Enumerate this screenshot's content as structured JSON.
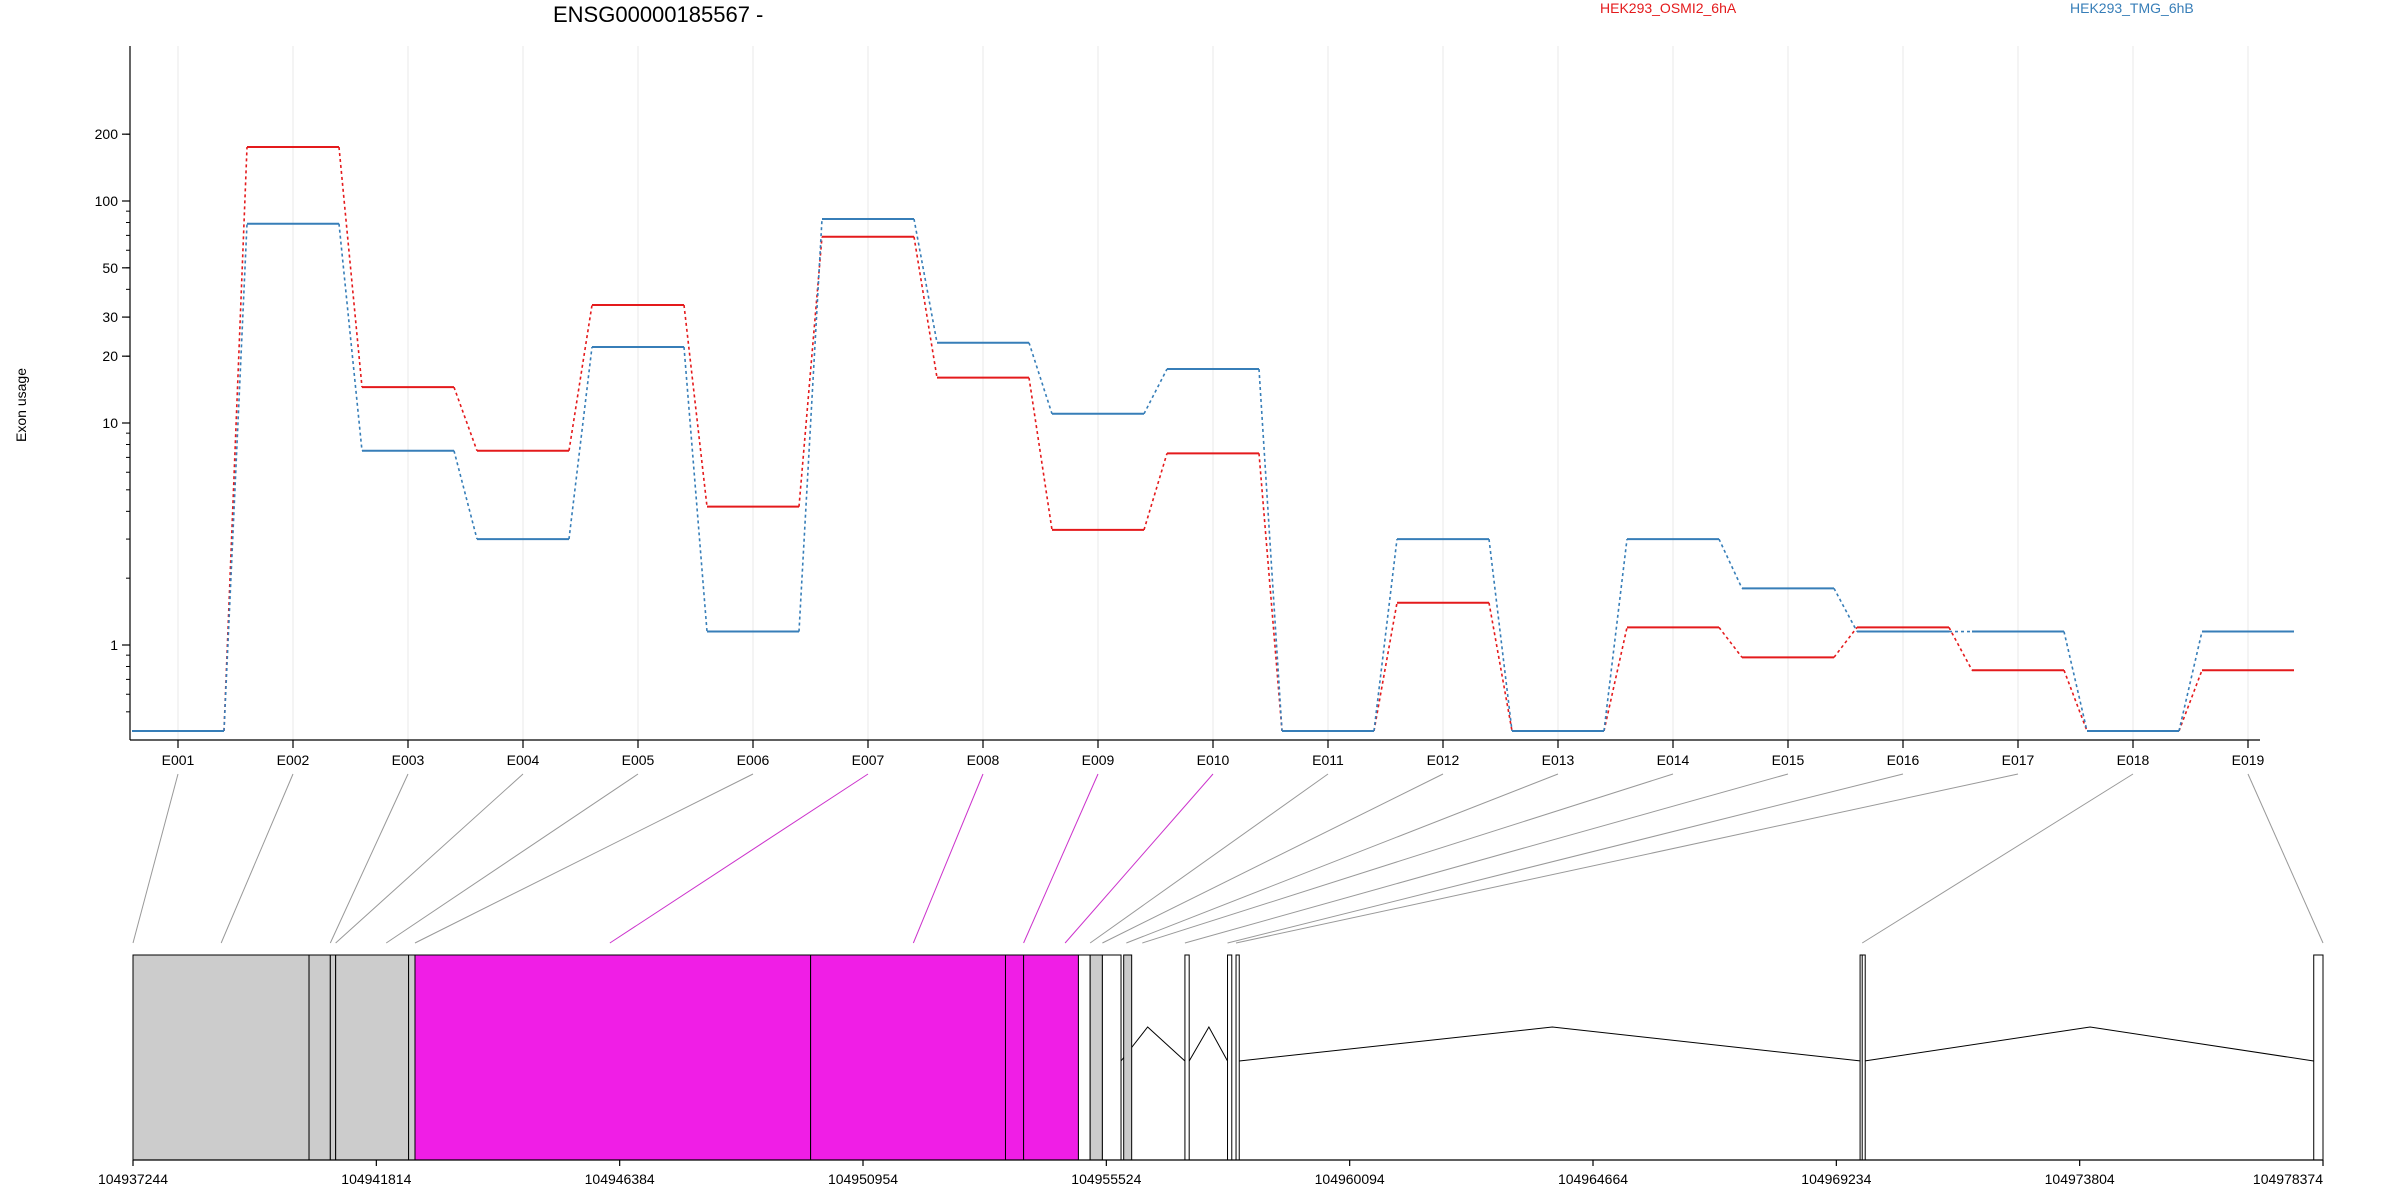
{
  "chart_data": {
    "type": "line",
    "title": "ENSG00000185567 -",
    "ylabel": "Exon usage",
    "xlabel": "",
    "y_scale": "log",
    "y_ticks": [
      1,
      10,
      20,
      30,
      50,
      100,
      200
    ],
    "y_tick_labels": [
      "1",
      "10",
      "20",
      "30",
      "50",
      "100",
      "200"
    ],
    "grid": "vertical lines at each exon",
    "legend_placement": "top",
    "categories": [
      "E001",
      "E002",
      "E003",
      "E004",
      "E005",
      "E006",
      "E007",
      "E008",
      "E009",
      "E010",
      "E011",
      "E012",
      "E013",
      "E014",
      "E015",
      "E016",
      "E017",
      "E018",
      "E019"
    ],
    "series": [
      {
        "name": "HEK293_OSMI2_6hA",
        "color": "#e41a1c",
        "values": [
          0.41,
          175,
          14.5,
          7.5,
          34,
          4.2,
          69,
          16,
          3.3,
          7.3,
          0.41,
          1.55,
          0.41,
          1.2,
          0.88,
          1.2,
          0.77,
          0.41,
          0.77
        ]
      },
      {
        "name": "HEK293_TMG_6hB",
        "color": "#377eb8",
        "values": [
          0.41,
          79,
          7.5,
          3.0,
          22,
          1.15,
          83,
          23,
          11,
          17.5,
          0.41,
          3.0,
          0.41,
          3.0,
          1.8,
          1.15,
          1.15,
          0.41,
          1.15
        ]
      }
    ],
    "gene_model": {
      "coordinate_ticks": [
        "104937244",
        "104941814",
        "104946384",
        "104950954",
        "104955524",
        "104960094",
        "104964664",
        "104969234",
        "104973804",
        "104978374"
      ],
      "range": [
        104937244,
        104978374
      ],
      "exons": [
        {
          "id": "E001",
          "start": 104937244,
          "end": 104940550,
          "color": "#cccccc"
        },
        {
          "id": "E002",
          "start": 104940550,
          "end": 104940950,
          "color": "#cccccc"
        },
        {
          "id": "E003",
          "start": 104940950,
          "end": 104941050,
          "color": "#cccccc"
        },
        {
          "id": "E004",
          "start": 104941050,
          "end": 104942420,
          "color": "#cccccc"
        },
        {
          "id": "E005",
          "start": 104942420,
          "end": 104942540,
          "color": "#cccccc"
        },
        {
          "id": "E006",
          "start": 104942540,
          "end": 104949970,
          "color": "#f01ee6"
        },
        {
          "id": "E007",
          "start": 104949970,
          "end": 104953630,
          "color": "#f01ee6"
        },
        {
          "id": "E008",
          "start": 104953630,
          "end": 104953970,
          "color": "#f01ee6"
        },
        {
          "id": "E009",
          "start": 104953970,
          "end": 104955000,
          "color": "#f01ee6"
        },
        {
          "id": "E010",
          "start": 104955000,
          "end": 104955220,
          "color": "#ffffff"
        },
        {
          "id": "E011",
          "start": 104955220,
          "end": 104955450,
          "color": "#cccccc"
        },
        {
          "id": "E012",
          "start": 104955450,
          "end": 104955800,
          "color": "#ffffff"
        },
        {
          "id": "E013",
          "start": 104955850,
          "end": 104956000,
          "color": "#cccccc"
        },
        {
          "id": "E014",
          "start": 104957000,
          "end": 104957080,
          "color": "#ffffff"
        },
        {
          "id": "E015",
          "start": 104957800,
          "end": 104957880,
          "color": "#ffffff"
        },
        {
          "id": "E016",
          "start": 104957960,
          "end": 104958020,
          "color": "#ffffff"
        },
        {
          "id": "E017",
          "start": 104969680,
          "end": 104969720,
          "color": "#ffffff"
        },
        {
          "id": "E018",
          "start": 104969720,
          "end": 104969760,
          "color": "#ffffff"
        },
        {
          "id": "E019",
          "start": 104978200,
          "end": 104978374,
          "color": "#ffffff"
        }
      ],
      "exon_label_targets": [
        104937244,
        104938900,
        104940950,
        104941050,
        104942000,
        104942540,
        104946200,
        104951900,
        104953970,
        104954750,
        104955220,
        104955450,
        104955900,
        104956200,
        104957000,
        104957800,
        104957960,
        104969720,
        104978374
      ],
      "highlight_link_color": "#cc33cc",
      "highlighted_exons": [
        "E007",
        "E008",
        "E009",
        "E010"
      ]
    }
  }
}
